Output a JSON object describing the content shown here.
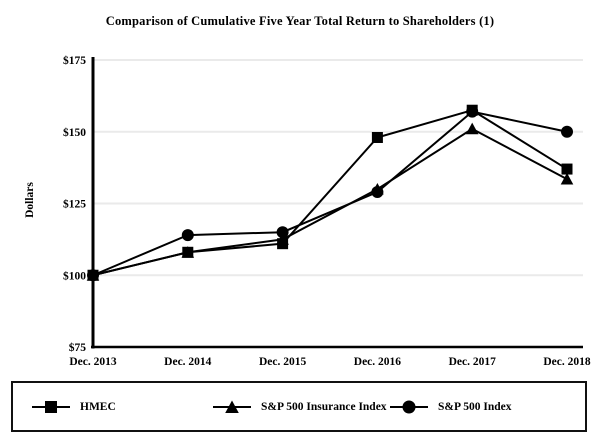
{
  "title": "Comparison of Cumulative Five Year Total Return to Shareholders (1)",
  "chart_data": {
    "type": "line",
    "title": "Comparison of Cumulative Five Year Total Return to Shareholders (1)",
    "categories": [
      "Dec. 2013",
      "Dec. 2014",
      "Dec. 2015",
      "Dec. 2016",
      "Dec. 2017",
      "Dec. 2018"
    ],
    "series": [
      {
        "name": "HMEC",
        "marker": "square",
        "values": [
          100,
          108,
          111,
          148,
          157.5,
          137
        ]
      },
      {
        "name": "S&P 500 Insurance Index",
        "marker": "triangle",
        "values": [
          100,
          108,
          112.5,
          130,
          151,
          133.5
        ]
      },
      {
        "name": "S&P 500 Index",
        "marker": "circle",
        "values": [
          100,
          114,
          115,
          129,
          157,
          150
        ]
      }
    ],
    "xlabel": "",
    "ylabel": "Dollars",
    "ylim": [
      75,
      175
    ],
    "yticks": [
      75,
      100,
      125,
      150,
      175
    ],
    "ytick_labels": [
      "$75",
      "$100",
      "$125",
      "$150",
      "$175"
    ],
    "grid": true,
    "legend_position": "bottom-box",
    "line_color": "#000000",
    "grid_color": "#eaeaea",
    "axis_color": "#000000"
  }
}
